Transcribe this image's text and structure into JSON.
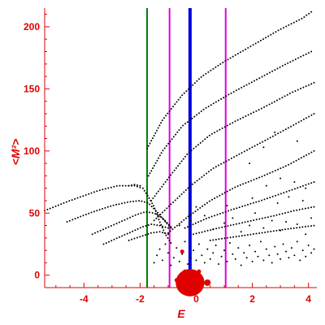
{
  "chart_data": {
    "type": "scatter",
    "xlabel": "E",
    "ylabel": "<M²>",
    "xlim": [
      -5.4,
      4.3
    ],
    "ylim": [
      -10,
      215
    ],
    "x_ticks": [
      -4,
      -2,
      0,
      2,
      4
    ],
    "x_tick_labels": [
      "-4",
      "-2",
      "0",
      "2",
      "4"
    ],
    "y_ticks": [
      0,
      50,
      100,
      150,
      200
    ],
    "y_tick_labels": [
      "0",
      "50",
      "100",
      "150",
      "200"
    ],
    "colors": {
      "axis": "#e00000",
      "points": "#000000",
      "green_line": "#007a00",
      "magenta_line": "#e000e0",
      "blue_line": "#0000e0",
      "blob": "#e00000"
    },
    "vertical_lines": [
      {
        "x": -1.75,
        "color": "green"
      },
      {
        "x": -0.95,
        "color": "magenta"
      },
      {
        "x": -0.22,
        "color": "blue"
      },
      {
        "x": 1.05,
        "color": "magenta"
      }
    ],
    "series": [
      {
        "kind": "curve",
        "values": [
          [
            -5.4,
            52
          ],
          [
            -4.5,
            60
          ],
          [
            -3.5,
            68
          ],
          [
            -2.8,
            72
          ],
          [
            -2.2,
            72
          ],
          [
            -1.9,
            70
          ],
          [
            -1.7,
            63
          ],
          [
            -1.5,
            55
          ],
          [
            -1.3,
            43
          ],
          [
            -1.1,
            33
          ],
          [
            -0.9,
            26
          ]
        ]
      },
      {
        "kind": "curve",
        "values": [
          [
            -4.6,
            43
          ],
          [
            -3.8,
            50
          ],
          [
            -3.0,
            56
          ],
          [
            -2.4,
            59
          ],
          [
            -2.0,
            60
          ],
          [
            -1.7,
            58
          ],
          [
            -1.4,
            51
          ],
          [
            -1.1,
            43
          ],
          [
            -0.9,
            38
          ]
        ]
      },
      {
        "kind": "curve",
        "values": [
          [
            -3.7,
            33
          ],
          [
            -3.0,
            40
          ],
          [
            -2.5,
            45
          ],
          [
            -2.1,
            49
          ],
          [
            -1.8,
            51
          ],
          [
            -1.5,
            50
          ],
          [
            -1.2,
            46
          ],
          [
            -0.9,
            39
          ]
        ]
      },
      {
        "kind": "curve",
        "values": [
          [
            -3.3,
            25
          ],
          [
            -2.8,
            30
          ],
          [
            -2.3,
            35
          ],
          [
            -1.9,
            39
          ],
          [
            -1.6,
            41
          ],
          [
            -1.3,
            40
          ],
          [
            -1.0,
            38
          ]
        ]
      },
      {
        "kind": "curve",
        "values": [
          [
            -2.4,
            28
          ],
          [
            -2.0,
            31
          ],
          [
            -1.6,
            34
          ],
          [
            -1.3,
            35
          ],
          [
            -1.0,
            33
          ]
        ]
      },
      {
        "kind": "curve",
        "values": [
          [
            -1.75,
            102
          ],
          [
            -1.2,
            125
          ],
          [
            -0.5,
            145
          ],
          [
            0.2,
            160
          ],
          [
            1.0,
            172
          ],
          [
            2.0,
            185
          ],
          [
            3.0,
            198
          ],
          [
            3.8,
            207
          ],
          [
            4.1,
            212
          ]
        ]
      },
      {
        "kind": "curve",
        "values": [
          [
            -1.7,
            80
          ],
          [
            -1.2,
            100
          ],
          [
            -0.5,
            120
          ],
          [
            0.3,
            134
          ],
          [
            1.2,
            146
          ],
          [
            2.2,
            158
          ],
          [
            3.2,
            170
          ],
          [
            4.1,
            180
          ]
        ]
      },
      {
        "kind": "curve",
        "values": [
          [
            -1.6,
            60
          ],
          [
            -1.0,
            78
          ],
          [
            -0.3,
            98
          ],
          [
            0.5,
            113
          ],
          [
            1.4,
            124
          ],
          [
            2.4,
            135
          ],
          [
            3.4,
            147
          ],
          [
            4.2,
            155
          ]
        ]
      },
      {
        "kind": "curve",
        "values": [
          [
            -1.5,
            44
          ],
          [
            -0.9,
            57
          ],
          [
            -0.2,
            72
          ],
          [
            0.6,
            86
          ],
          [
            1.5,
            97
          ],
          [
            2.5,
            109
          ],
          [
            3.4,
            120
          ],
          [
            4.2,
            130
          ]
        ]
      },
      {
        "kind": "curve",
        "values": [
          [
            -1.0,
            34
          ],
          [
            -0.3,
            47
          ],
          [
            0.5,
            60
          ],
          [
            1.4,
            71
          ],
          [
            2.4,
            80
          ],
          [
            3.3,
            89
          ],
          [
            4.2,
            100
          ]
        ]
      },
      {
        "kind": "curve",
        "values": [
          [
            -0.4,
            38
          ],
          [
            0.4,
            46
          ],
          [
            1.3,
            53
          ],
          [
            2.3,
            60
          ],
          [
            3.2,
            67
          ],
          [
            4.2,
            75
          ]
        ]
      },
      {
        "kind": "curve",
        "values": [
          [
            -0.1,
            33
          ],
          [
            0.8,
            38
          ],
          [
            1.8,
            43
          ],
          [
            2.8,
            48
          ],
          [
            3.5,
            52
          ],
          [
            4.2,
            55
          ]
        ]
      },
      {
        "kind": "curve",
        "values": [
          [
            0.5,
            28
          ],
          [
            1.4,
            31
          ],
          [
            2.3,
            34
          ],
          [
            3.2,
            37
          ],
          [
            4.2,
            40
          ]
        ]
      },
      {
        "kind": "curve",
        "values": [
          [
            -2.4,
            72
          ],
          [
            -2.2,
            73
          ],
          [
            -2.0,
            72
          ]
        ]
      }
    ],
    "scatter_cloud": [
      [
        -1.5,
        10
      ],
      [
        -1.4,
        16
      ],
      [
        -1.3,
        21
      ],
      [
        -1.2,
        12
      ],
      [
        -1.1,
        25
      ],
      [
        -1.0,
        18
      ],
      [
        -0.9,
        8
      ],
      [
        -0.8,
        14
      ],
      [
        -0.7,
        22
      ],
      [
        -0.6,
        11
      ],
      [
        -0.5,
        17
      ],
      [
        -0.4,
        27
      ],
      [
        -0.3,
        9
      ],
      [
        -0.2,
        14
      ],
      [
        -0.1,
        20
      ],
      [
        0.0,
        12
      ],
      [
        0.1,
        25
      ],
      [
        0.2,
        16
      ],
      [
        0.3,
        10
      ],
      [
        0.4,
        21
      ],
      [
        0.5,
        13
      ],
      [
        0.6,
        18
      ],
      [
        0.7,
        24
      ],
      [
        0.8,
        9
      ],
      [
        0.9,
        15
      ],
      [
        1.0,
        20
      ],
      [
        1.1,
        11
      ],
      [
        1.2,
        26
      ],
      [
        1.3,
        17
      ],
      [
        1.4,
        13
      ],
      [
        1.5,
        22
      ],
      [
        1.6,
        8
      ],
      [
        1.7,
        18
      ],
      [
        1.8,
        14
      ],
      [
        1.9,
        24
      ],
      [
        2.0,
        11
      ],
      [
        2.1,
        19
      ],
      [
        2.2,
        15
      ],
      [
        2.3,
        27
      ],
      [
        2.4,
        12
      ],
      [
        2.5,
        21
      ],
      [
        2.6,
        16
      ],
      [
        2.7,
        10
      ],
      [
        2.8,
        23
      ],
      [
        2.9,
        17
      ],
      [
        3.0,
        13
      ],
      [
        3.1,
        25
      ],
      [
        3.2,
        19
      ],
      [
        3.3,
        14
      ],
      [
        3.4,
        22
      ],
      [
        3.5,
        16
      ],
      [
        3.6,
        27
      ],
      [
        3.7,
        12
      ],
      [
        3.8,
        20
      ],
      [
        3.9,
        15
      ],
      [
        4.0,
        24
      ],
      [
        4.1,
        18
      ],
      [
        4.2,
        21
      ],
      [
        -0.6,
        40
      ],
      [
        -0.2,
        44
      ],
      [
        0.3,
        48
      ],
      [
        0.6,
        37
      ],
      [
        1.0,
        42
      ],
      [
        1.3,
        46
      ],
      [
        1.6,
        35
      ],
      [
        1.9,
        40
      ],
      [
        2.1,
        50
      ],
      [
        2.4,
        38
      ],
      [
        2.7,
        44
      ],
      [
        3.0,
        36
      ],
      [
        3.2,
        43
      ],
      [
        3.6,
        41
      ],
      [
        3.9,
        33
      ],
      [
        4.1,
        46
      ],
      [
        0.0,
        55
      ],
      [
        1.1,
        56
      ],
      [
        2.0,
        62
      ],
      [
        2.9,
        58
      ],
      [
        3.3,
        63
      ],
      [
        3.8,
        60
      ],
      [
        2.5,
        72
      ],
      [
        3.0,
        78
      ],
      [
        3.5,
        75
      ],
      [
        3.9,
        70
      ],
      [
        1.9,
        90
      ],
      [
        2.4,
        103
      ],
      [
        2.8,
        115
      ],
      [
        3.6,
        108
      ]
    ],
    "red_blob": {
      "center": [
        -0.22,
        -6
      ],
      "radius_y": 11
    },
    "red_dots": [
      [
        -0.4,
        3
      ],
      [
        -0.5,
        19
      ],
      [
        0.4,
        -6
      ],
      [
        0.1,
        3
      ],
      [
        -0.7,
        -4
      ],
      [
        0.2,
        -3
      ]
    ]
  }
}
